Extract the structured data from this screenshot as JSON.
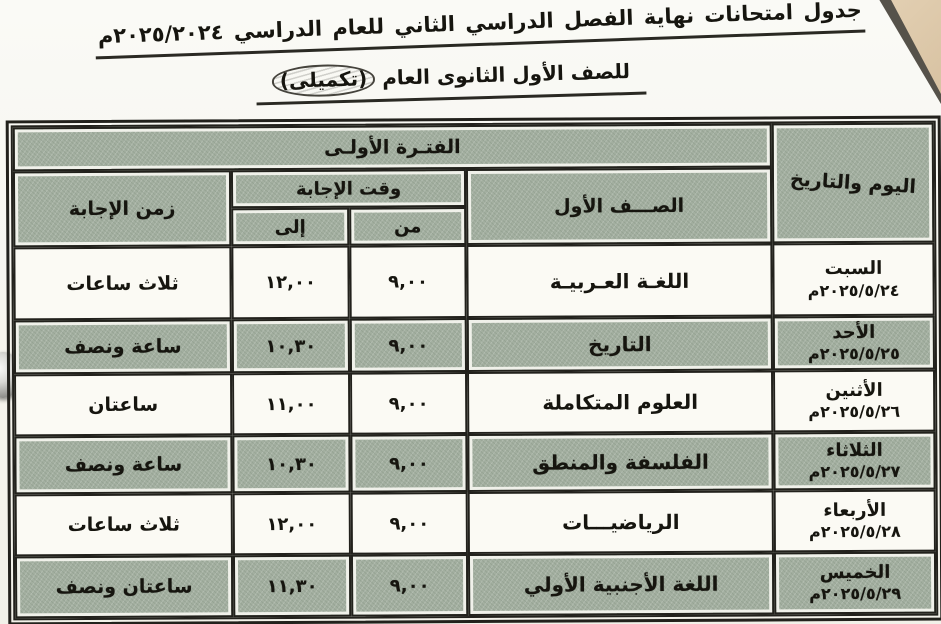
{
  "page": {
    "title": "جدول امتحانات نهاية الفصل الدراسي الثاني للعام الدراسي ٢٠٢٥/٢٠٢٤م",
    "subtitle_prefix": "للصف الأول الثانوى العام",
    "subtitle_highlight": "(تكميلى)"
  },
  "table": {
    "period_header": "الفتـرة الأولـى",
    "columns": {
      "day": "اليوم والتاريخ",
      "subject": "الصـــف الأول",
      "time": "وقت الإجابة",
      "from": "من",
      "to": "إلى",
      "duration": "زمن الإجابة"
    },
    "rows": [
      {
        "day": "السبت",
        "date": "٢٠٢٥/٥/٢٤م",
        "subject": "اللغـة العـربيـة",
        "from": "٩,٠٠",
        "to": "١٢,٠٠",
        "duration": "ثلاث ساعات",
        "shaded": false
      },
      {
        "day": "الأحد",
        "date": "٢٠٢٥/٥/٢٥م",
        "subject": "التاريخ",
        "from": "٩,٠٠",
        "to": "١٠,٣٠",
        "duration": "ساعة ونصف",
        "shaded": true
      },
      {
        "day": "الأثنين",
        "date": "٢٠٢٥/٥/٢٦م",
        "subject": "العلوم المتكاملة",
        "from": "٩,٠٠",
        "to": "١١,٠٠",
        "duration": "ساعتان",
        "shaded": false
      },
      {
        "day": "الثلاثاء",
        "date": "٢٠٢٥/٥/٢٧م",
        "subject": "الفلسفة والمنطق",
        "from": "٩,٠٠",
        "to": "١٠,٣٠",
        "duration": "ساعة ونصف",
        "shaded": true
      },
      {
        "day": "الأربعاء",
        "date": "٢٠٢٥/٥/٢٨م",
        "subject": "الرياضيـــات",
        "from": "٩,٠٠",
        "to": "١٢,٠٠",
        "duration": "ثلاث ساعات",
        "shaded": false
      },
      {
        "day": "الخميس",
        "date": "٢٠٢٥/٥/٢٩م",
        "subject": "اللغة الأجنبية الأولي",
        "from": "٩,٠٠",
        "to": "١١,٣٠",
        "duration": "ساعتان ونصف",
        "shaded": true
      }
    ]
  },
  "colors": {
    "paper": "#f6f5ee",
    "row_white": "#fbfaf4",
    "shaded_green": "#a3afa0",
    "border": "#22211c",
    "ink": "#16150f",
    "corner_tan": "#d8c2a2",
    "corner_shadow": "#56524a"
  }
}
